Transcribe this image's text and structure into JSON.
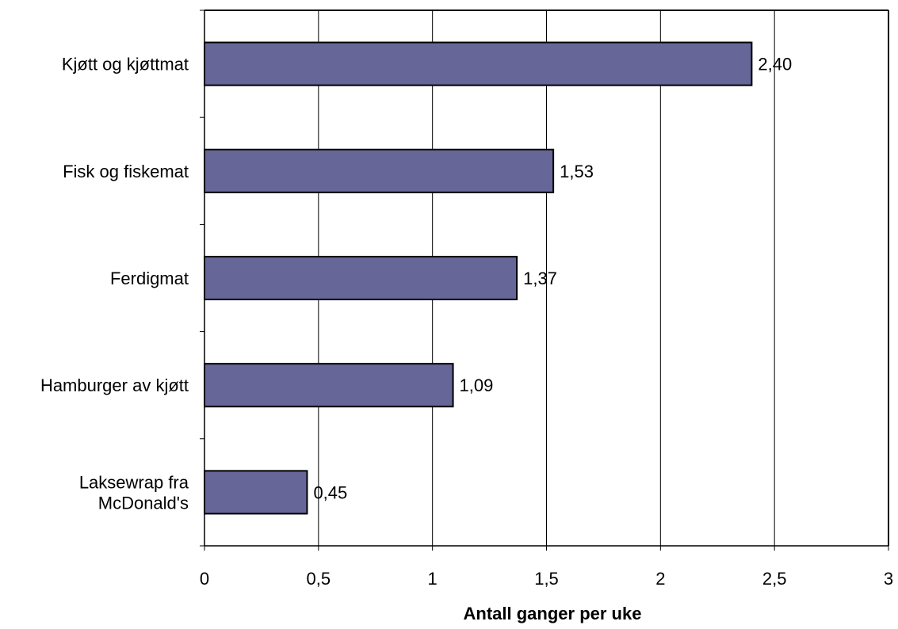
{
  "chart_data": {
    "type": "bar",
    "orientation": "horizontal",
    "categories": [
      [
        "Kjøtt og kjøttmat"
      ],
      [
        "Fisk og fiskemat"
      ],
      [
        "Ferdigmat"
      ],
      [
        "Hamburger av kjøtt"
      ],
      [
        "Laksewrap fra",
        "McDonald's"
      ]
    ],
    "series": [
      {
        "values": [
          2.4,
          1.53,
          1.37,
          1.09,
          0.45
        ],
        "data_labels": [
          "2,40",
          "1,53",
          "1,37",
          "1,09",
          "0,45"
        ],
        "color": "#666699"
      }
    ],
    "x_ticks": [
      {
        "value": 0,
        "label": "0"
      },
      {
        "value": 0.5,
        "label": "0,5"
      },
      {
        "value": 1,
        "label": "1"
      },
      {
        "value": 1.5,
        "label": "1,5"
      },
      {
        "value": 2,
        "label": "2"
      },
      {
        "value": 2.5,
        "label": "2,5"
      },
      {
        "value": 3,
        "label": "3"
      }
    ],
    "xlim": [
      0,
      3
    ],
    "xlabel": "Antall ganger per uke",
    "ylabel": "",
    "title": "",
    "vertical_gridlines": true,
    "legend": "none",
    "colors": {
      "bar_fill": "#666699",
      "bar_stroke": "#000000",
      "gridline": "#000000",
      "background": "#ffffff"
    }
  }
}
